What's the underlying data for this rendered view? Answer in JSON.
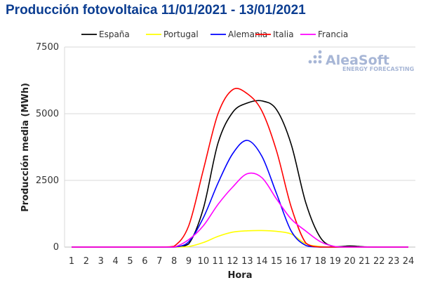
{
  "logo": {
    "name": "AleaSoft",
    "tagline": "ENERGY FORECASTING",
    "color": "#a7b6d6"
  },
  "chart_data": {
    "type": "line",
    "title": "Producción fotovoltaica 11/01/2021 - 13/01/2021",
    "xlabel": "Hora",
    "ylabel": "Producción media (MWh)",
    "x": [
      1,
      2,
      3,
      4,
      5,
      6,
      7,
      8,
      9,
      10,
      11,
      12,
      13,
      14,
      15,
      16,
      17,
      18,
      19,
      20,
      21,
      22,
      23,
      24
    ],
    "xlim": [
      1,
      24
    ],
    "ylim": [
      0,
      7500
    ],
    "yticks": [
      0,
      2500,
      5000,
      7500
    ],
    "grid": true,
    "legend_position": "top",
    "series": [
      {
        "name": "España",
        "color": "#000000",
        "values": [
          0,
          0,
          0,
          0,
          0,
          0,
          0,
          0,
          120,
          1450,
          3900,
          5050,
          5400,
          5480,
          5150,
          3850,
          1650,
          350,
          10,
          40,
          10,
          0,
          0,
          0
        ]
      },
      {
        "name": "Portugal",
        "color": "#ffff00",
        "values": [
          0,
          0,
          0,
          0,
          0,
          0,
          0,
          0,
          20,
          170,
          400,
          560,
          610,
          620,
          590,
          490,
          120,
          20,
          0,
          0,
          0,
          0,
          0,
          0
        ]
      },
      {
        "name": "Alemania",
        "color": "#0000ff",
        "values": [
          0,
          0,
          0,
          0,
          0,
          0,
          0,
          0,
          200,
          1100,
          2400,
          3500,
          4000,
          3400,
          2000,
          600,
          60,
          0,
          0,
          0,
          0,
          0,
          0,
          0
        ]
      },
      {
        "name": "Italia",
        "color": "#ff0000",
        "values": [
          0,
          0,
          0,
          0,
          0,
          0,
          0,
          30,
          800,
          2900,
          5000,
          5900,
          5750,
          5100,
          3600,
          1500,
          150,
          0,
          0,
          0,
          0,
          0,
          0,
          0
        ]
      },
      {
        "name": "Francia",
        "color": "#ff00ff",
        "values": [
          0,
          0,
          0,
          0,
          0,
          0,
          0,
          0,
          280,
          800,
          1600,
          2250,
          2750,
          2600,
          1800,
          1050,
          600,
          200,
          20,
          0,
          0,
          0,
          0,
          0
        ]
      }
    ]
  }
}
